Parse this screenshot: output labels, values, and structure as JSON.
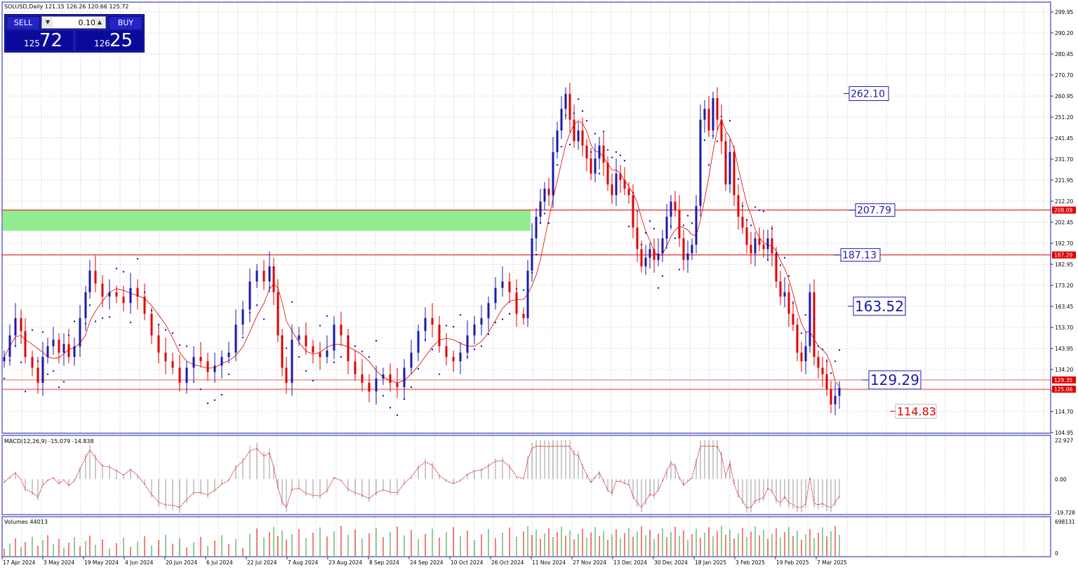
{
  "header": {
    "symbol_line": "SOLUSD,Daily  121.15 126.26 120.66 125.72"
  },
  "trade_panel": {
    "sell_label": "SELL",
    "buy_label": "BUY",
    "lot_value": "0.10",
    "sell_small": "125",
    "sell_big": "72",
    "buy_small": "126",
    "buy_big": "25"
  },
  "chart_data": {
    "type": "candlestick",
    "price_axis_ticks": [
      "299.95",
      "290.20",
      "280.45",
      "270.70",
      "260.95",
      "251.20",
      "241.45",
      "231.70",
      "221.95",
      "212.20",
      "202.45",
      "192.70",
      "182.95",
      "173.20",
      "163.45",
      "153.70",
      "143.95",
      "134.20",
      "124.45",
      "114.70",
      "104.95"
    ],
    "price_range": [
      104.95,
      299.95
    ],
    "date_ticks": [
      "17 Apr 2024",
      "3 May 2024",
      "19 May 2024",
      "4 Jun 2024",
      "20 Jun 2024",
      "6 Jul 2024",
      "22 Jul 2024",
      "7 Aug 2024",
      "23 Aug 2024",
      "8 Sep 2024",
      "24 Sep 2024",
      "10 Oct 2024",
      "26 Oct 2024",
      "11 Nov 2024",
      "27 Nov 2024",
      "13 Dec 2024",
      "30 Dec 2024",
      "18 Jan 2025",
      "3 Feb 2025",
      "19 Feb 2025",
      "7 Mar 2025"
    ],
    "close_path": [
      [
        0,
        140
      ],
      [
        8,
        150
      ],
      [
        16,
        158
      ],
      [
        24,
        152
      ],
      [
        30,
        140
      ],
      [
        40,
        135
      ],
      [
        48,
        128
      ],
      [
        55,
        140
      ],
      [
        62,
        145
      ],
      [
        70,
        148
      ],
      [
        78,
        142
      ],
      [
        85,
        146
      ],
      [
        92,
        140
      ],
      [
        100,
        145
      ],
      [
        108,
        158
      ],
      [
        116,
        170
      ],
      [
        122,
        180
      ],
      [
        130,
        174
      ],
      [
        140,
        168
      ],
      [
        150,
        170
      ],
      [
        160,
        168
      ],
      [
        170,
        165
      ],
      [
        180,
        172
      ],
      [
        190,
        168
      ],
      [
        200,
        160
      ],
      [
        210,
        150
      ],
      [
        220,
        142
      ],
      [
        230,
        138
      ],
      [
        240,
        135
      ],
      [
        250,
        128
      ],
      [
        260,
        135
      ],
      [
        270,
        140
      ],
      [
        280,
        138
      ],
      [
        290,
        133
      ],
      [
        300,
        136
      ],
      [
        310,
        140
      ],
      [
        320,
        142
      ],
      [
        330,
        155
      ],
      [
        340,
        162
      ],
      [
        350,
        175
      ],
      [
        360,
        180
      ],
      [
        370,
        175
      ],
      [
        378,
        182
      ],
      [
        384,
        170
      ],
      [
        390,
        150
      ],
      [
        396,
        135
      ],
      [
        402,
        128
      ],
      [
        410,
        148
      ],
      [
        420,
        150
      ],
      [
        430,
        145
      ],
      [
        440,
        142
      ],
      [
        450,
        140
      ],
      [
        460,
        143
      ],
      [
        470,
        155
      ],
      [
        480,
        150
      ],
      [
        490,
        138
      ],
      [
        500,
        132
      ],
      [
        510,
        128
      ],
      [
        520,
        124
      ],
      [
        530,
        130
      ],
      [
        540,
        132
      ],
      [
        550,
        128
      ],
      [
        560,
        126
      ],
      [
        570,
        135
      ],
      [
        580,
        142
      ],
      [
        590,
        152
      ],
      [
        600,
        158
      ],
      [
        610,
        155
      ],
      [
        620,
        145
      ],
      [
        630,
        140
      ],
      [
        640,
        138
      ],
      [
        650,
        142
      ],
      [
        660,
        150
      ],
      [
        670,
        155
      ],
      [
        680,
        158
      ],
      [
        690,
        165
      ],
      [
        700,
        172
      ],
      [
        710,
        175
      ],
      [
        720,
        170
      ],
      [
        730,
        160
      ],
      [
        740,
        158
      ],
      [
        746,
        180
      ],
      [
        752,
        195
      ],
      [
        758,
        205
      ],
      [
        764,
        212
      ],
      [
        770,
        218
      ],
      [
        776,
        215
      ],
      [
        782,
        235
      ],
      [
        788,
        245
      ],
      [
        794,
        255
      ],
      [
        800,
        262
      ],
      [
        806,
        250
      ],
      [
        812,
        240
      ],
      [
        818,
        245
      ],
      [
        824,
        238
      ],
      [
        830,
        232
      ],
      [
        836,
        225
      ],
      [
        842,
        232
      ],
      [
        848,
        238
      ],
      [
        854,
        230
      ],
      [
        860,
        220
      ],
      [
        866,
        215
      ],
      [
        872,
        225
      ],
      [
        878,
        222
      ],
      [
        884,
        218
      ],
      [
        890,
        215
      ],
      [
        896,
        200
      ],
      [
        902,
        190
      ],
      [
        908,
        182
      ],
      [
        914,
        186
      ],
      [
        920,
        190
      ],
      [
        926,
        185
      ],
      [
        932,
        188
      ],
      [
        938,
        195
      ],
      [
        944,
        205
      ],
      [
        950,
        212
      ],
      [
        956,
        208
      ],
      [
        962,
        195
      ],
      [
        968,
        185
      ],
      [
        974,
        188
      ],
      [
        980,
        192
      ],
      [
        986,
        210
      ],
      [
        992,
        250
      ],
      [
        998,
        255
      ],
      [
        1004,
        245
      ],
      [
        1010,
        260
      ],
      [
        1016,
        250
      ],
      [
        1022,
        240
      ],
      [
        1028,
        220
      ],
      [
        1034,
        235
      ],
      [
        1040,
        215
      ],
      [
        1046,
        205
      ],
      [
        1052,
        200
      ],
      [
        1058,
        192
      ],
      [
        1064,
        188
      ],
      [
        1070,
        195
      ],
      [
        1076,
        192
      ],
      [
        1082,
        190
      ],
      [
        1088,
        195
      ],
      [
        1094,
        188
      ],
      [
        1100,
        175
      ],
      [
        1106,
        168
      ],
      [
        1112,
        170
      ],
      [
        1118,
        160
      ],
      [
        1124,
        155
      ],
      [
        1130,
        142
      ],
      [
        1136,
        138
      ],
      [
        1142,
        145
      ],
      [
        1148,
        170
      ],
      [
        1154,
        140
      ],
      [
        1160,
        135
      ],
      [
        1166,
        132
      ],
      [
        1172,
        125
      ],
      [
        1178,
        118
      ],
      [
        1184,
        122
      ],
      [
        1190,
        125.72
      ]
    ],
    "horizontal_levels": [
      {
        "price": 208.09,
        "label": "207.79",
        "color": "#e00000"
      },
      {
        "price": 187.29,
        "label": "187.13",
        "color": "#e00000"
      },
      {
        "price": 129.35,
        "label": "129.29",
        "color": "#e00000"
      },
      {
        "price": 125.06,
        "label": "",
        "color": "#e00000"
      }
    ],
    "level_badges": [
      "208.09",
      "187.29",
      "129.35",
      "125.06"
    ],
    "price_labels": [
      {
        "text": "262.10",
        "price": 262.1,
        "color": "#1a1aa8"
      },
      {
        "text": "163.52",
        "price": 163.52,
        "color": "#1a1aa8"
      },
      {
        "text": "114.83",
        "price": 114.83,
        "color": "#e00000"
      }
    ],
    "supply_zone": {
      "top": 208.09,
      "bottom": 198.5,
      "color": "#90ee90"
    },
    "macd": {
      "label": "MACD(12,26,9) -15.079 -14.838",
      "ticks": [
        "22.927",
        "0.00",
        "-19.728"
      ],
      "range": [
        -19.728,
        22.927
      ]
    },
    "volumes": {
      "label": "Volumes 44013",
      "ticks": [
        "698131",
        "0"
      ]
    },
    "grid": true,
    "colors": {
      "bull": "#1a1aa8",
      "bear": "#e00000",
      "ma": "#e00000",
      "psar": "#1a1aa8",
      "grid": "#b8b8b8"
    }
  }
}
